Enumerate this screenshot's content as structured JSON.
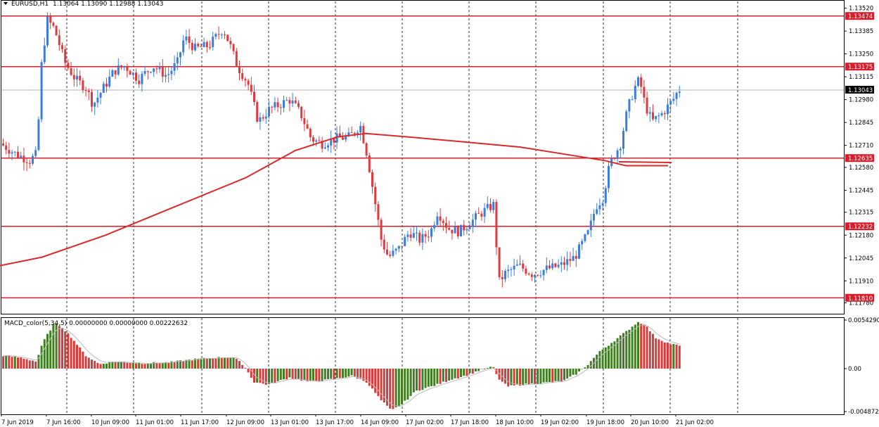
{
  "header": {
    "symbol_label": "EURUSD,H1",
    "ohlc": "1.13064 1.13090 1.12988 1.13043"
  },
  "macd": {
    "label": "MACD_color(5,34,5) 0.00000000 0.00000000 0.00222632",
    "axis": [
      "0.0054290",
      "0.00",
      "-0.004872"
    ]
  },
  "price_axis": {
    "ticks": [
      "1.13520",
      "1.13385",
      "1.13250",
      "1.13115",
      "1.12980",
      "1.12845",
      "1.12710",
      "1.12580",
      "1.12445",
      "1.12315",
      "1.12180",
      "1.12045",
      "1.11910",
      "1.11780"
    ],
    "current": "1.13043"
  },
  "levels": [
    "1.13474",
    "1.13175",
    "1.12635",
    "1.12232",
    "1.11810"
  ],
  "time_labels": [
    "7 Jun 2019",
    "7 Jun 16:00",
    "10 Jun 09:00",
    "11 Jun 01:00",
    "11 Jun 17:00",
    "12 Jun 09:00",
    "13 Jun 01:00",
    "13 Jun 17:00",
    "14 Jun 09:00",
    "17 Jun 02:00",
    "17 Jun 18:00",
    "18 Jun 10:00",
    "19 Jun 02:00",
    "19 Jun 18:00",
    "20 Jun 10:00",
    "21 Jun 02:00"
  ],
  "colors": {
    "bull": "#3b7ddd",
    "bear": "#e03a3e",
    "level": "#d81e2c",
    "ma": "#d82a2a",
    "hist_pos": "#d93a3a",
    "hist_neg": "#3f7f22",
    "grid": "#000000"
  },
  "chart_data": {
    "type": "candlestick",
    "symbol": "EURUSD",
    "timeframe": "H1",
    "price_range": [
      1.1172,
      1.1356
    ],
    "ma_points": [
      [
        0,
        1.12
      ],
      [
        60,
        1.1205
      ],
      [
        150,
        1.1218
      ],
      [
        250,
        1.1235
      ],
      [
        350,
        1.1252
      ],
      [
        420,
        1.1268
      ],
      [
        480,
        1.1276
      ],
      [
        520,
        1.1278
      ],
      [
        580,
        1.1276
      ],
      [
        660,
        1.1273
      ],
      [
        740,
        1.127
      ],
      [
        800,
        1.1266
      ],
      [
        860,
        1.1262
      ],
      [
        890,
        1.1259
      ],
      [
        950,
        1.1259
      ]
    ],
    "price_segments": [
      [
        0,
        1.1273
      ],
      [
        25,
        1.1266
      ],
      [
        45,
        1.1262
      ],
      [
        55,
        1.1266
      ],
      [
        62,
        1.132
      ],
      [
        70,
        1.1345
      ],
      [
        80,
        1.134
      ],
      [
        95,
        1.132
      ],
      [
        110,
        1.131
      ],
      [
        125,
        1.1305
      ],
      [
        135,
        1.1295
      ],
      [
        150,
        1.1305
      ],
      [
        165,
        1.1315
      ],
      [
        180,
        1.1318
      ],
      [
        200,
        1.131
      ],
      [
        220,
        1.1318
      ],
      [
        240,
        1.1312
      ],
      [
        255,
        1.132
      ],
      [
        265,
        1.1335
      ],
      [
        280,
        1.1328
      ],
      [
        300,
        1.133
      ],
      [
        320,
        1.134
      ],
      [
        330,
        1.133
      ],
      [
        340,
        1.1318
      ],
      [
        355,
        1.1308
      ],
      [
        370,
        1.1285
      ],
      [
        385,
        1.1292
      ],
      [
        400,
        1.1295
      ],
      [
        415,
        1.1298
      ],
      [
        430,
        1.129
      ],
      [
        445,
        1.1275
      ],
      [
        460,
        1.1272
      ],
      [
        480,
        1.1275
      ],
      [
        500,
        1.1276
      ],
      [
        515,
        1.1283
      ],
      [
        525,
        1.1265
      ],
      [
        535,
        1.124
      ],
      [
        545,
        1.1215
      ],
      [
        555,
        1.1205
      ],
      [
        570,
        1.121
      ],
      [
        585,
        1.122
      ],
      [
        600,
        1.1215
      ],
      [
        615,
        1.122
      ],
      [
        625,
        1.1232
      ],
      [
        640,
        1.1222
      ],
      [
        655,
        1.122
      ],
      [
        670,
        1.1225
      ],
      [
        690,
        1.1232
      ],
      [
        705,
        1.1236
      ],
      [
        712,
        1.119
      ],
      [
        720,
        1.1195
      ],
      [
        740,
        1.12
      ],
      [
        760,
        1.1195
      ],
      [
        780,
        1.1198
      ],
      [
        800,
        1.12
      ],
      [
        820,
        1.1205
      ],
      [
        840,
        1.122
      ],
      [
        850,
        1.1235
      ],
      [
        860,
        1.124
      ],
      [
        870,
        1.126
      ],
      [
        885,
        1.1272
      ],
      [
        895,
        1.1292
      ],
      [
        905,
        1.1305
      ],
      [
        912,
        1.131
      ],
      [
        920,
        1.1295
      ],
      [
        930,
        1.1285
      ],
      [
        945,
        1.129
      ],
      [
        960,
        1.1298
      ],
      [
        968,
        1.1304
      ]
    ],
    "macd_points": [
      [
        0,
        0.0015
      ],
      [
        30,
        0.0012
      ],
      [
        50,
        0.0008
      ],
      [
        60,
        0.003
      ],
      [
        75,
        0.005
      ],
      [
        85,
        0.0048
      ],
      [
        100,
        0.0035
      ],
      [
        120,
        0.0015
      ],
      [
        140,
        0.0005
      ],
      [
        160,
        0.0008
      ],
      [
        200,
        0.0006
      ],
      [
        240,
        0.0007
      ],
      [
        270,
        0.001
      ],
      [
        300,
        0.0012
      ],
      [
        330,
        0.0013
      ],
      [
        345,
        0.0004
      ],
      [
        360,
        -0.0015
      ],
      [
        380,
        -0.0018
      ],
      [
        410,
        -0.001
      ],
      [
        440,
        -0.0015
      ],
      [
        470,
        -0.0012
      ],
      [
        500,
        -0.0008
      ],
      [
        520,
        -0.0015
      ],
      [
        540,
        -0.0035
      ],
      [
        555,
        -0.0047
      ],
      [
        570,
        -0.004
      ],
      [
        590,
        -0.0025
      ],
      [
        620,
        -0.0018
      ],
      [
        640,
        -0.0012
      ],
      [
        660,
        -0.0008
      ],
      [
        680,
        -0.0002
      ],
      [
        700,
        0.0002
      ],
      [
        706,
        -0.001
      ],
      [
        720,
        -0.002
      ],
      [
        740,
        -0.0018
      ],
      [
        770,
        -0.0016
      ],
      [
        800,
        -0.0014
      ],
      [
        820,
        -0.0005
      ],
      [
        835,
        0.0005
      ],
      [
        850,
        0.0018
      ],
      [
        870,
        0.003
      ],
      [
        890,
        0.0042
      ],
      [
        905,
        0.0052
      ],
      [
        915,
        0.005
      ],
      [
        930,
        0.0035
      ],
      [
        950,
        0.0028
      ],
      [
        968,
        0.0025
      ]
    ]
  }
}
